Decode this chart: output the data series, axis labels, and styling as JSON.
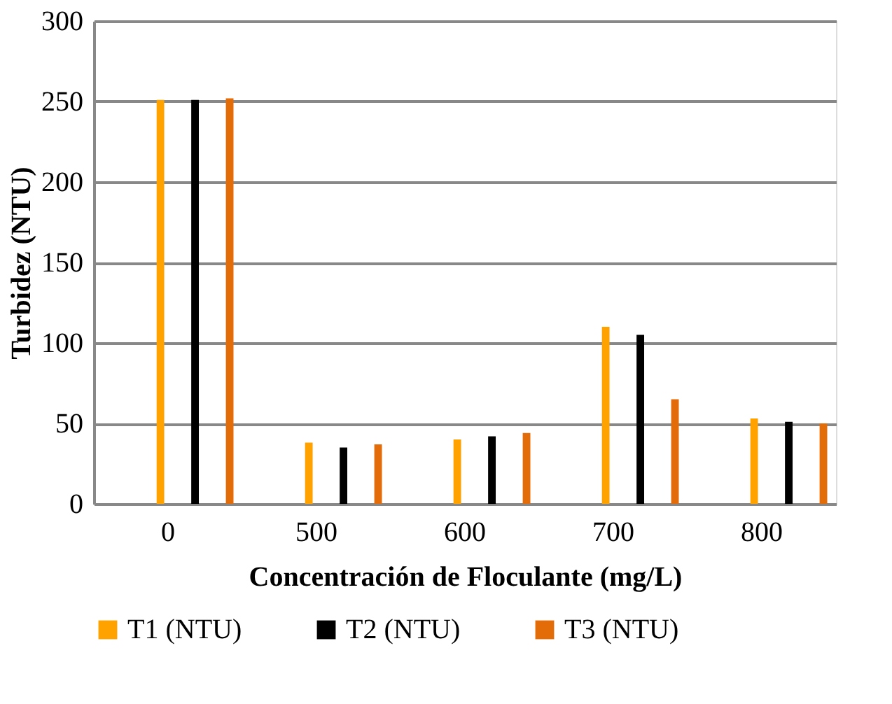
{
  "chart_data": {
    "type": "bar",
    "xlabel": "Concentración de Floculante (mg/L)",
    "ylabel": "Turbidez (NTU)",
    "categories": [
      "0",
      "500",
      "600",
      "700",
      "800"
    ],
    "series": [
      {
        "name": "T1 (NTU)",
        "color": "#ffa200",
        "values": [
          251,
          38,
          40,
          110,
          53
        ]
      },
      {
        "name": "T2 (NTU)",
        "color": "#000000",
        "values": [
          251,
          35,
          42,
          105,
          51
        ]
      },
      {
        "name": "T3 (NTU)",
        "color": "#e36c09",
        "values": [
          252,
          37,
          44,
          65,
          50
        ]
      }
    ],
    "ylim": [
      0,
      300
    ],
    "yticks": [
      0,
      50,
      100,
      150,
      200,
      250,
      300
    ],
    "grid": "y",
    "legend": "bottom"
  }
}
